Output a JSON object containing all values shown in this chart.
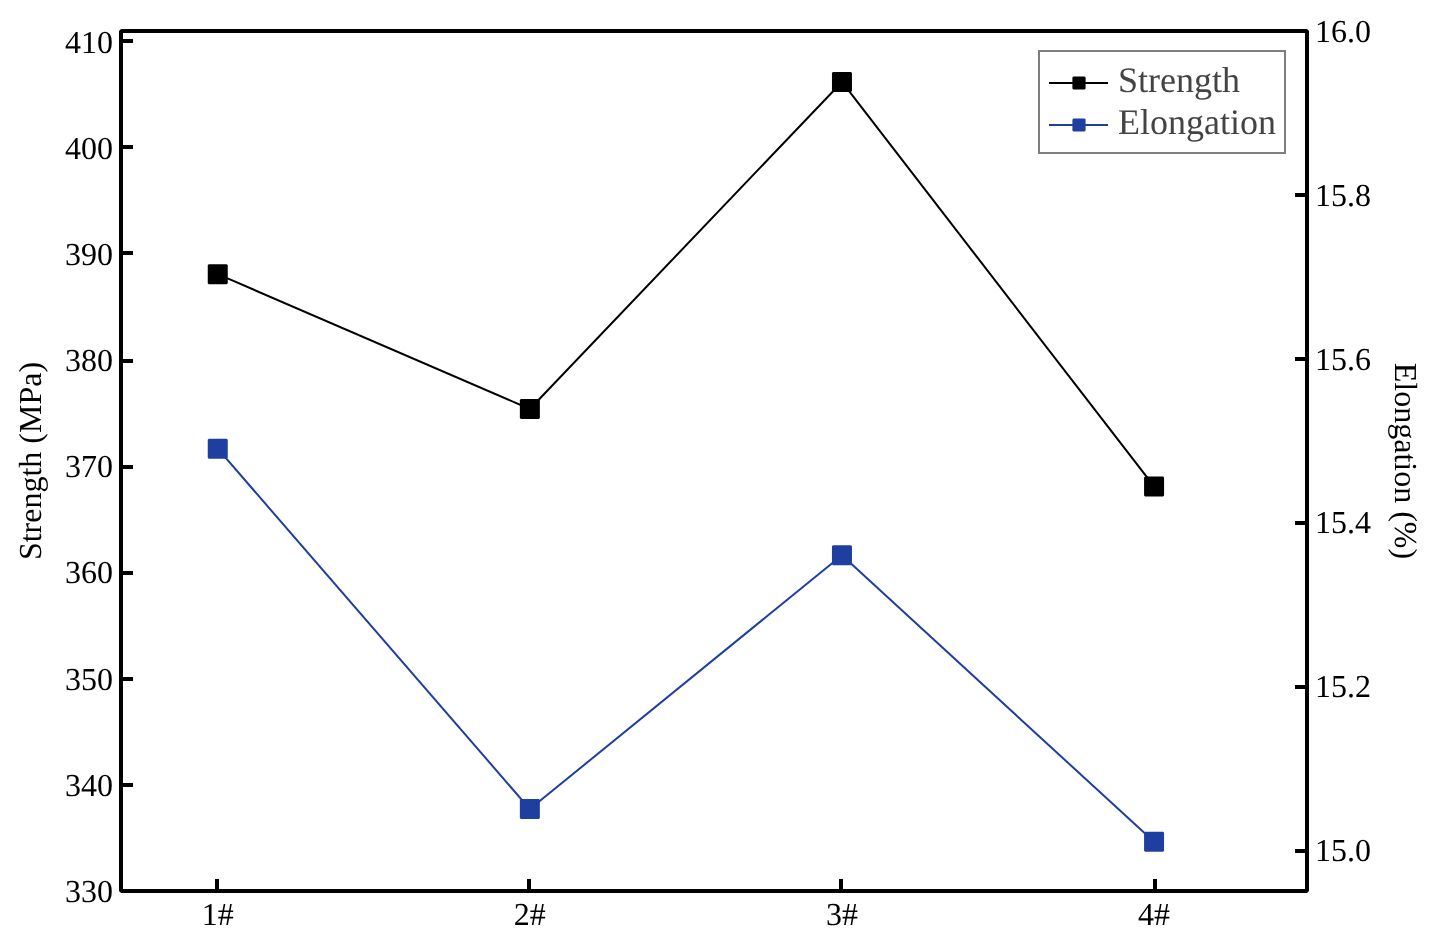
{
  "chart_data": {
    "type": "line",
    "categories": [
      "1#",
      "2#",
      "3#",
      "4#"
    ],
    "ylabel": "Strength (MPa)",
    "y2label": "Elongation (%)",
    "ylim": [
      330,
      411
    ],
    "yticks": [
      330,
      340,
      350,
      360,
      370,
      380,
      390,
      400,
      410
    ],
    "y2lim": [
      14.95,
      16.0
    ],
    "y2ticks": [
      {
        "value": 15.0,
        "label": "15.0"
      },
      15.2,
      15.4,
      15.6,
      15.8,
      {
        "value": 16.0,
        "label": "16.0"
      }
    ],
    "series": [
      {
        "name": "Strength",
        "color": "#000000",
        "values": [
          388.1,
          375.4,
          406.2,
          368.1
        ]
      },
      {
        "name": "Elongation",
        "color": "#1f3fa0",
        "axis": "y2",
        "values": [
          15.49,
          15.05,
          15.36,
          15.01
        ]
      }
    ],
    "marker": "square",
    "line_style": "solid",
    "legend": "top right",
    "grid": false
  }
}
